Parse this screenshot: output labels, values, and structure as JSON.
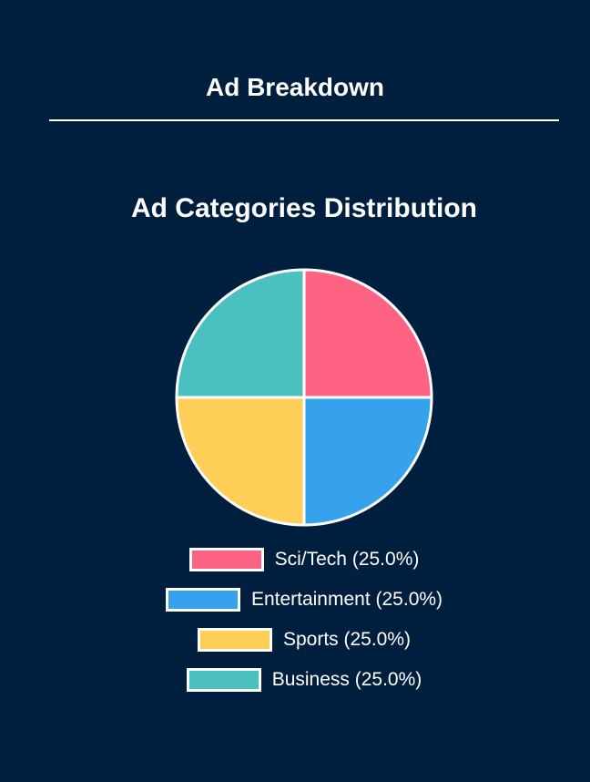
{
  "header": {
    "title": "Ad Breakdown"
  },
  "chart_data": {
    "type": "pie",
    "title": "Ad Categories Distribution",
    "categories": [
      "Sci/Tech",
      "Entertainment",
      "Sports",
      "Business"
    ],
    "values": [
      25,
      25,
      25,
      25
    ],
    "colors": [
      "#ff6384",
      "#36a2eb",
      "#ffce56",
      "#4bc0c0"
    ],
    "legend": [
      "Sci/Tech (25.0%)",
      "Entertainment (25.0%)",
      "Sports (25.0%)",
      "Business (25.0%)"
    ],
    "legend_position": "bottom"
  }
}
